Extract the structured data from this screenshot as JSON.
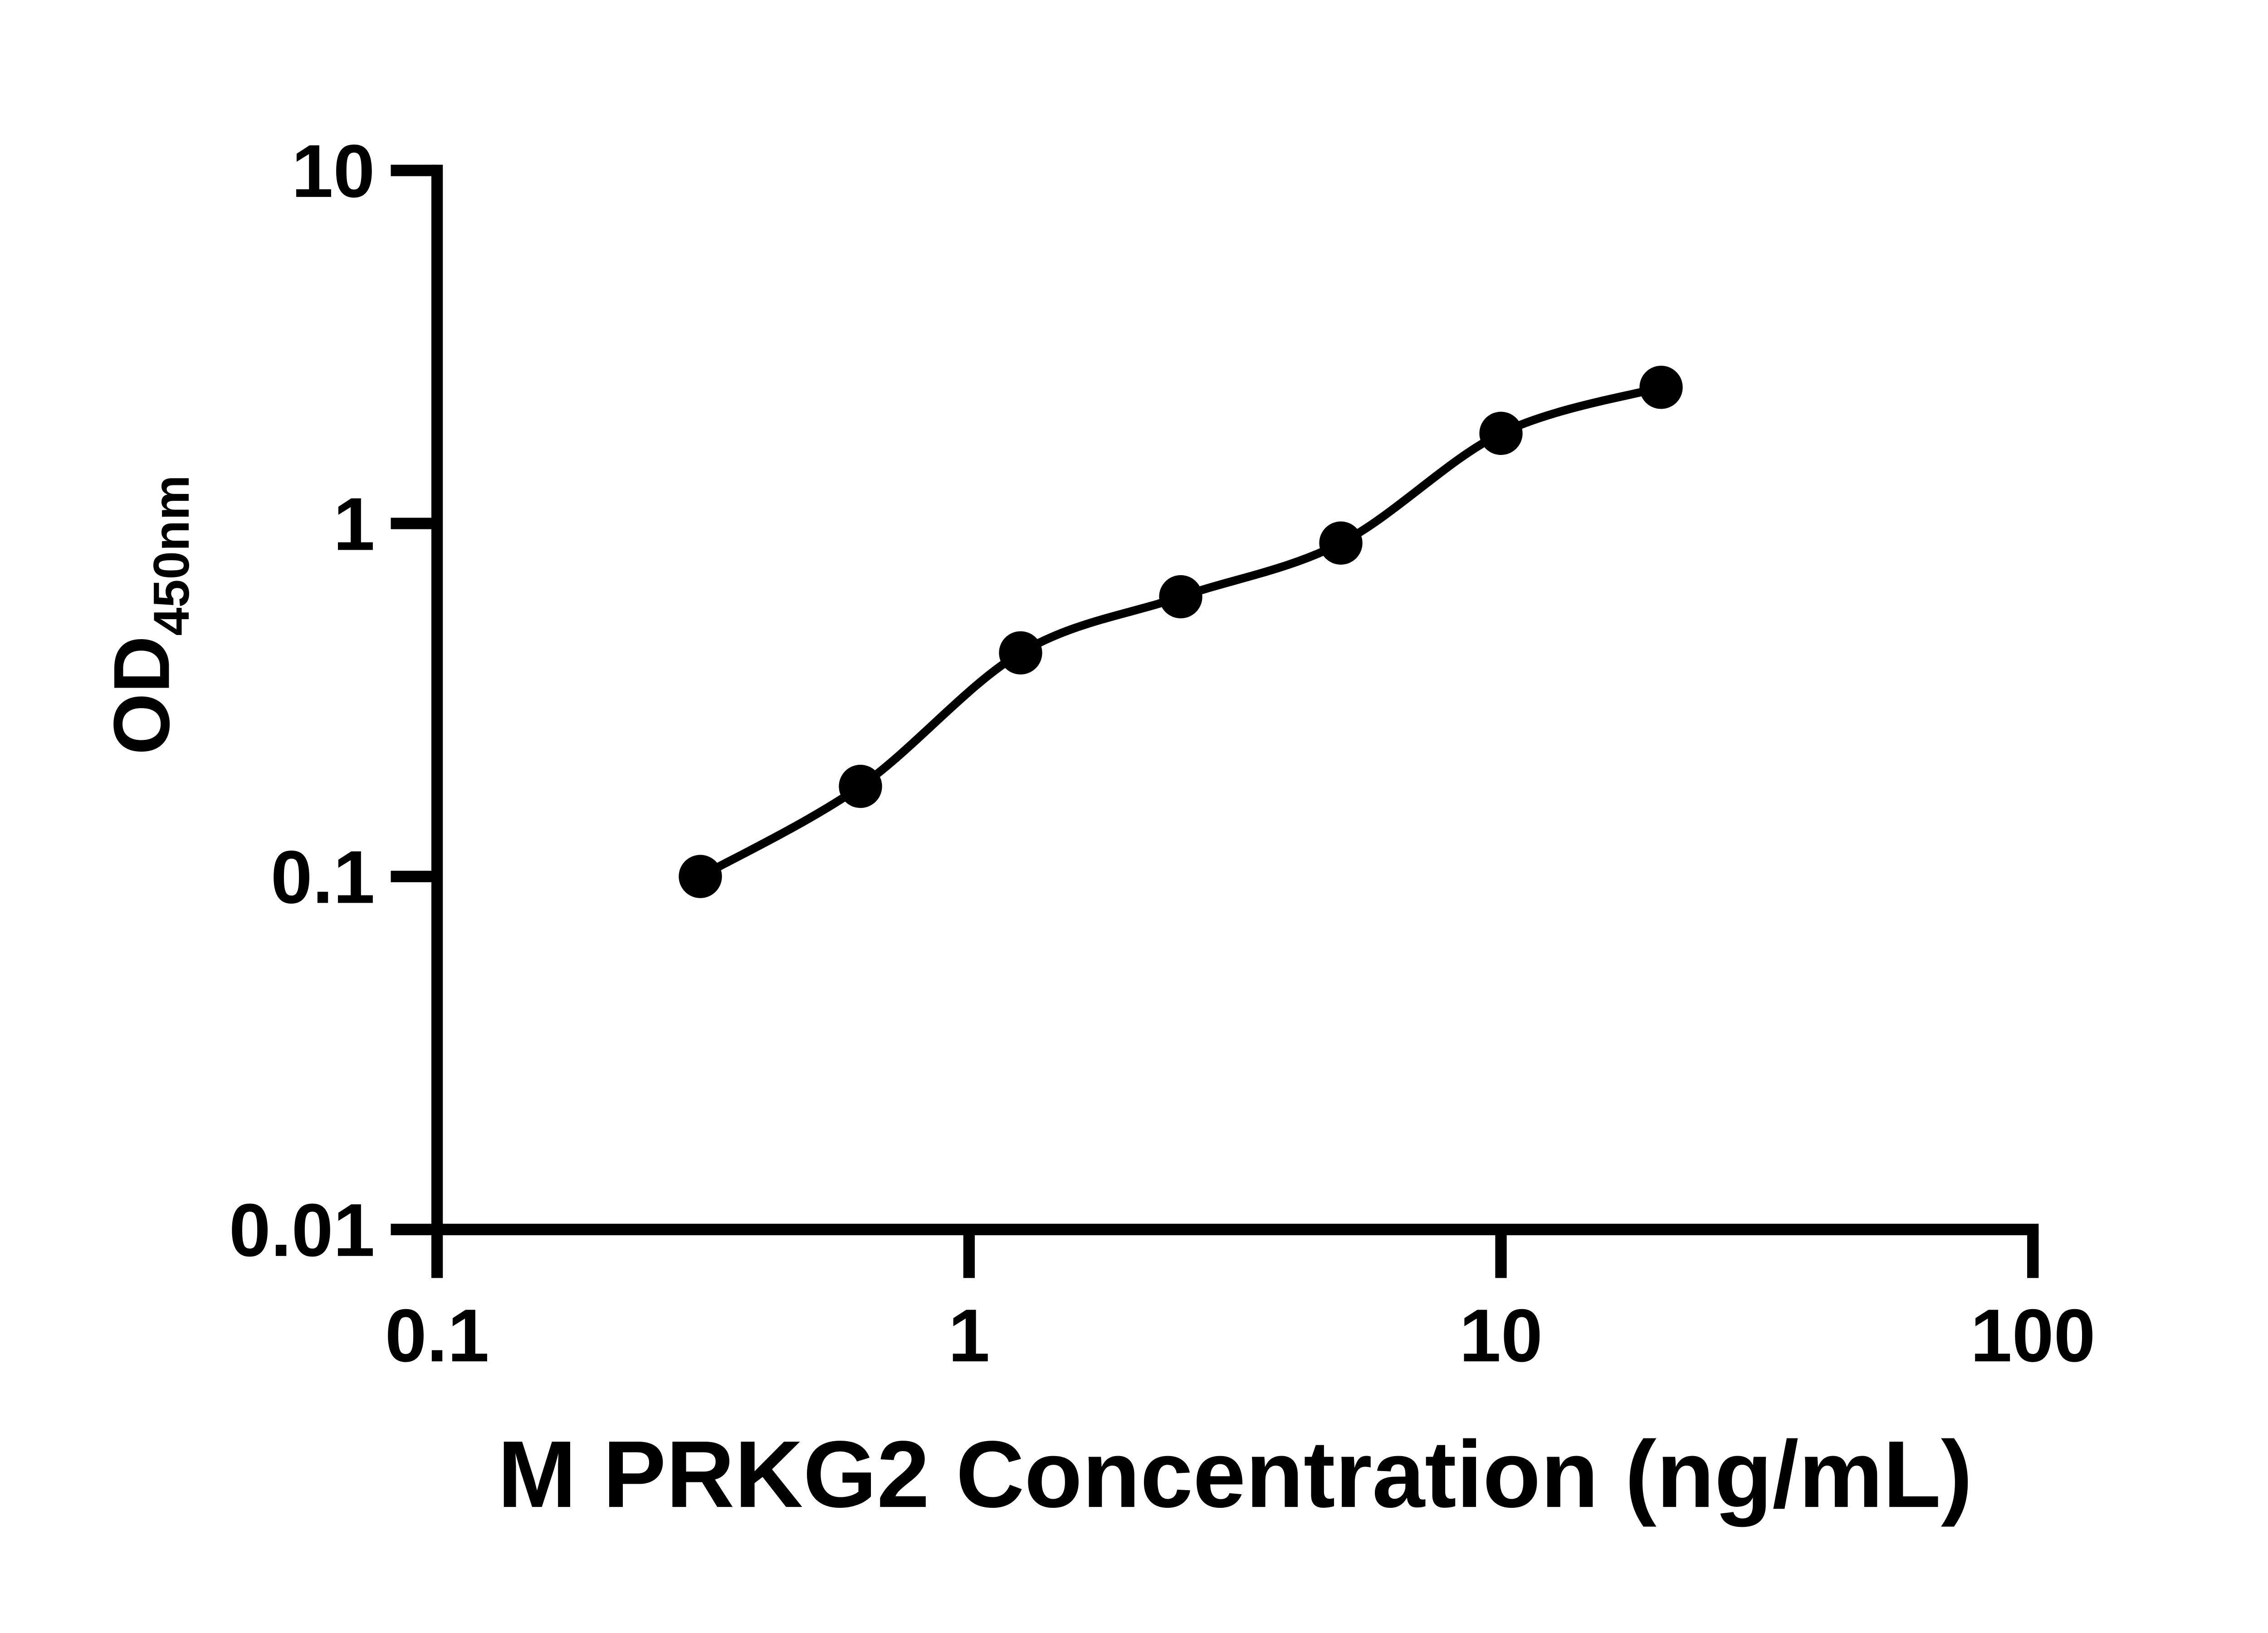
{
  "page": {
    "background_color": "#ffffff",
    "ink_color": "#000000"
  },
  "chart_data": {
    "type": "scatter",
    "subtype": "elisa-standard-curve",
    "xlabel": "M PRKG2 Concentration (ng/mL)",
    "ylabel": "OD450nm",
    "ylabel_main": "OD",
    "ylabel_subscript": "450nm",
    "x_scale": "log10",
    "y_scale": "log10",
    "xlim": [
      0.1,
      100
    ],
    "ylim": [
      0.01,
      10
    ],
    "x_tick_values": [
      0.1,
      1,
      10,
      100
    ],
    "x_tick_labels": [
      "0.1",
      "1",
      "10",
      "100"
    ],
    "y_tick_values": [
      10,
      1,
      0.1,
      0.01
    ],
    "y_tick_labels": [
      "10",
      "1",
      "0.1",
      "0.01"
    ],
    "grid": false,
    "legend_position": "none",
    "marker": {
      "shape": "filled-circle",
      "color": "#000000"
    },
    "line": {
      "color": "#000000",
      "style": "solid",
      "smooth": true
    },
    "series": [
      {
        "name": "standard-curve",
        "points": [
          {
            "x": 0.3125,
            "y": 0.1
          },
          {
            "x": 0.625,
            "y": 0.18
          },
          {
            "x": 1.25,
            "y": 0.43
          },
          {
            "x": 2.5,
            "y": 0.62
          },
          {
            "x": 5,
            "y": 0.88
          },
          {
            "x": 10,
            "y": 1.8
          },
          {
            "x": 20,
            "y": 2.43
          }
        ]
      }
    ]
  }
}
